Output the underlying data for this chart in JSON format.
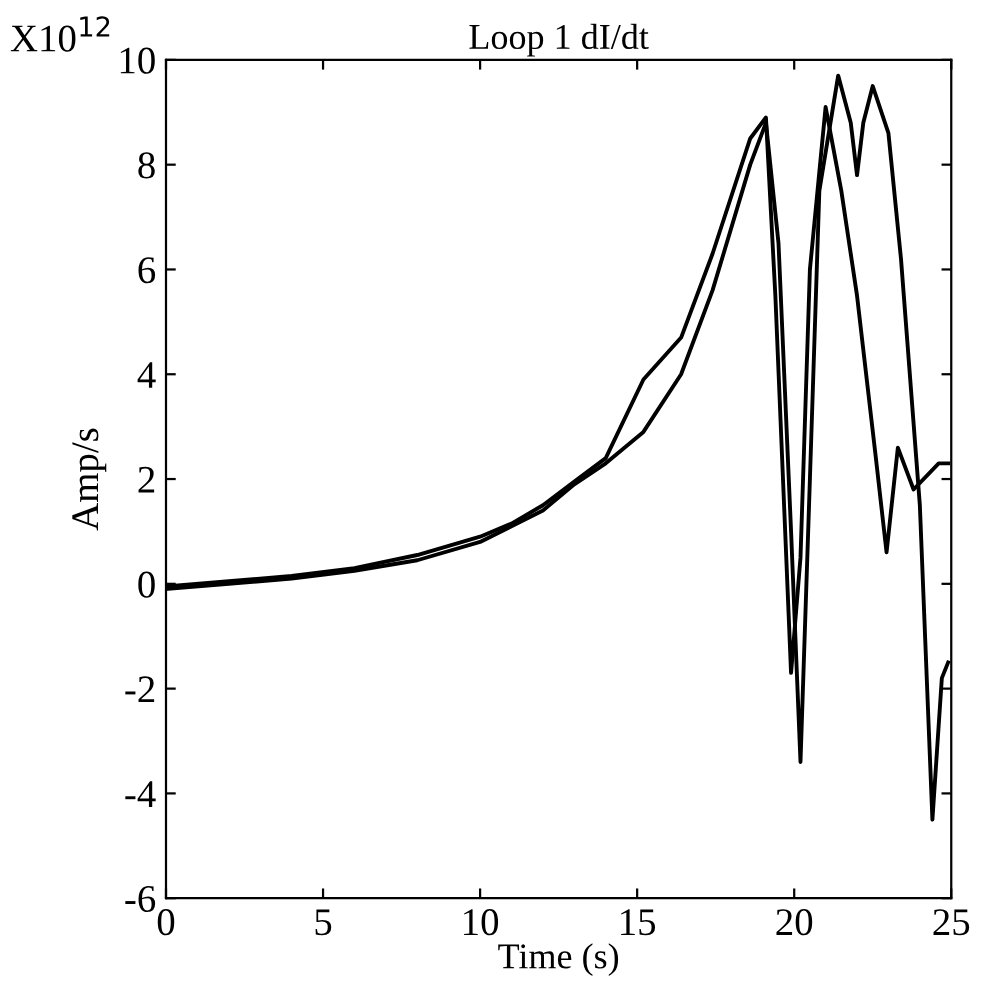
{
  "chart_data": {
    "type": "line",
    "title": "Loop 1 dI/dt",
    "xlabel": "Time (s)",
    "ylabel": "Amp/s",
    "annotations": [
      "X10$^{12}$"
    ],
    "xlim": [
      0,
      25
    ],
    "xticks": [
      0,
      5,
      10,
      15,
      20,
      25
    ],
    "ylim": [
      -6,
      10
    ],
    "yticks": [
      -6,
      -4,
      -2,
      0,
      2,
      4,
      6,
      8,
      10
    ],
    "grid": false,
    "legend": false,
    "marker": "none",
    "line_style": "solid",
    "series": [
      {
        "color": "#000000",
        "x": [
          0,
          2,
          4,
          6,
          8,
          10,
          11,
          12,
          13,
          14,
          15.2,
          16.4,
          17.4,
          18.6,
          19.1,
          19.5,
          19.9,
          20.2,
          20.5,
          20.8,
          21.4,
          21.8,
          22.0,
          22.2,
          22.5,
          23.0,
          23.4,
          24.0,
          24.4,
          24.7,
          24.9
        ],
        "values": [
          -0.1,
          0.0,
          0.1,
          0.25,
          0.45,
          0.8,
          1.1,
          1.4,
          1.9,
          2.3,
          2.9,
          4.0,
          5.6,
          8.0,
          8.8,
          6.5,
          1.0,
          -3.4,
          2.0,
          7.5,
          9.7,
          8.8,
          7.8,
          8.8,
          9.5,
          8.6,
          6.2,
          1.5,
          -4.5,
          -1.8,
          -1.5
        ]
      },
      {
        "color": "#000000",
        "x": [
          0,
          2,
          4,
          6,
          8,
          10,
          11,
          12,
          13,
          14,
          15.2,
          16.4,
          17.4,
          18.6,
          19.1,
          19.4,
          19.9,
          20.2,
          20.5,
          21.0,
          21.5,
          22.0,
          22.6,
          22.94,
          23.3,
          23.8,
          24.6,
          24.9
        ],
        "values": [
          -0.05,
          0.05,
          0.15,
          0.3,
          0.55,
          0.9,
          1.15,
          1.5,
          1.95,
          2.4,
          3.9,
          4.7,
          6.3,
          8.5,
          8.9,
          5.5,
          -1.7,
          0.5,
          6.0,
          9.1,
          7.5,
          5.5,
          2.4,
          0.6,
          2.6,
          1.8,
          2.3,
          2.3
        ]
      }
    ]
  }
}
